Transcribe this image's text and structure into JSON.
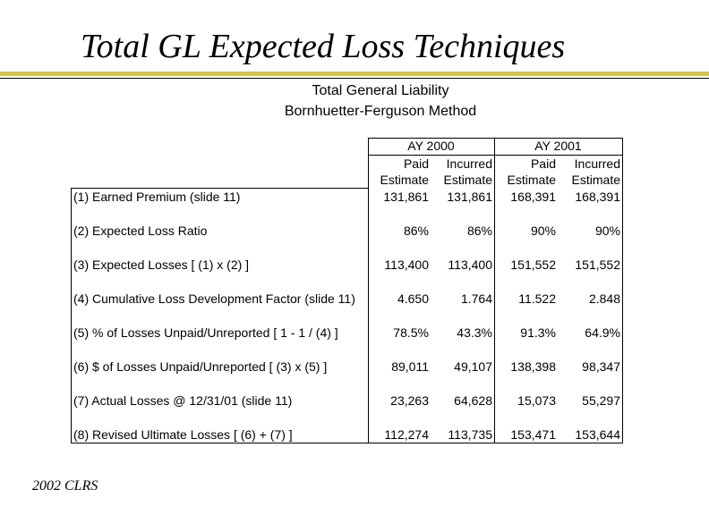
{
  "title": "Total GL Expected Loss Techniques",
  "subtitle_1": "Total General Liability",
  "subtitle_2": "Bornhuetter-Ferguson Method",
  "table": {
    "groups": [
      "AY 2000",
      "AY 2001"
    ],
    "col_top": [
      "Paid",
      "Incurred",
      "Paid",
      "Incurred"
    ],
    "col_bottom": [
      "Estimate",
      "Estimate",
      "Estimate",
      "Estimate"
    ],
    "rows": [
      {
        "label": "(1) Earned Premium (slide 11)",
        "values": [
          "131,861",
          "131,861",
          "168,391",
          "168,391"
        ]
      },
      {
        "label": "(2) Expected Loss Ratio",
        "values": [
          "86%",
          "86%",
          "90%",
          "90%"
        ]
      },
      {
        "label": "(3) Expected Losses [ (1) x (2) ]",
        "values": [
          "113,400",
          "113,400",
          "151,552",
          "151,552"
        ]
      },
      {
        "label": "(4) Cumulative Loss Development Factor (slide 11)",
        "values": [
          "4.650",
          "1.764",
          "11.522",
          "2.848"
        ]
      },
      {
        "label": "(5) % of Losses Unpaid/Unreported [ 1 - 1 / (4) ]",
        "values": [
          "78.5%",
          "43.3%",
          "91.3%",
          "64.9%"
        ]
      },
      {
        "label": "(6) $ of Losses Unpaid/Unreported [ (3) x (5) ]",
        "values": [
          "89,011",
          "49,107",
          "138,398",
          "98,347"
        ]
      },
      {
        "label": "(7) Actual Losses @ 12/31/01 (slide 11)",
        "values": [
          "23,263",
          "64,628",
          "15,073",
          "55,297"
        ]
      },
      {
        "label": "(8) Revised Ultimate Losses [ (6) + (7) ]",
        "values": [
          "112,274",
          "113,735",
          "153,471",
          "153,644"
        ]
      }
    ]
  },
  "footer": "2002 CLRS",
  "colors": {
    "accent_rule": "#d4c34a"
  }
}
